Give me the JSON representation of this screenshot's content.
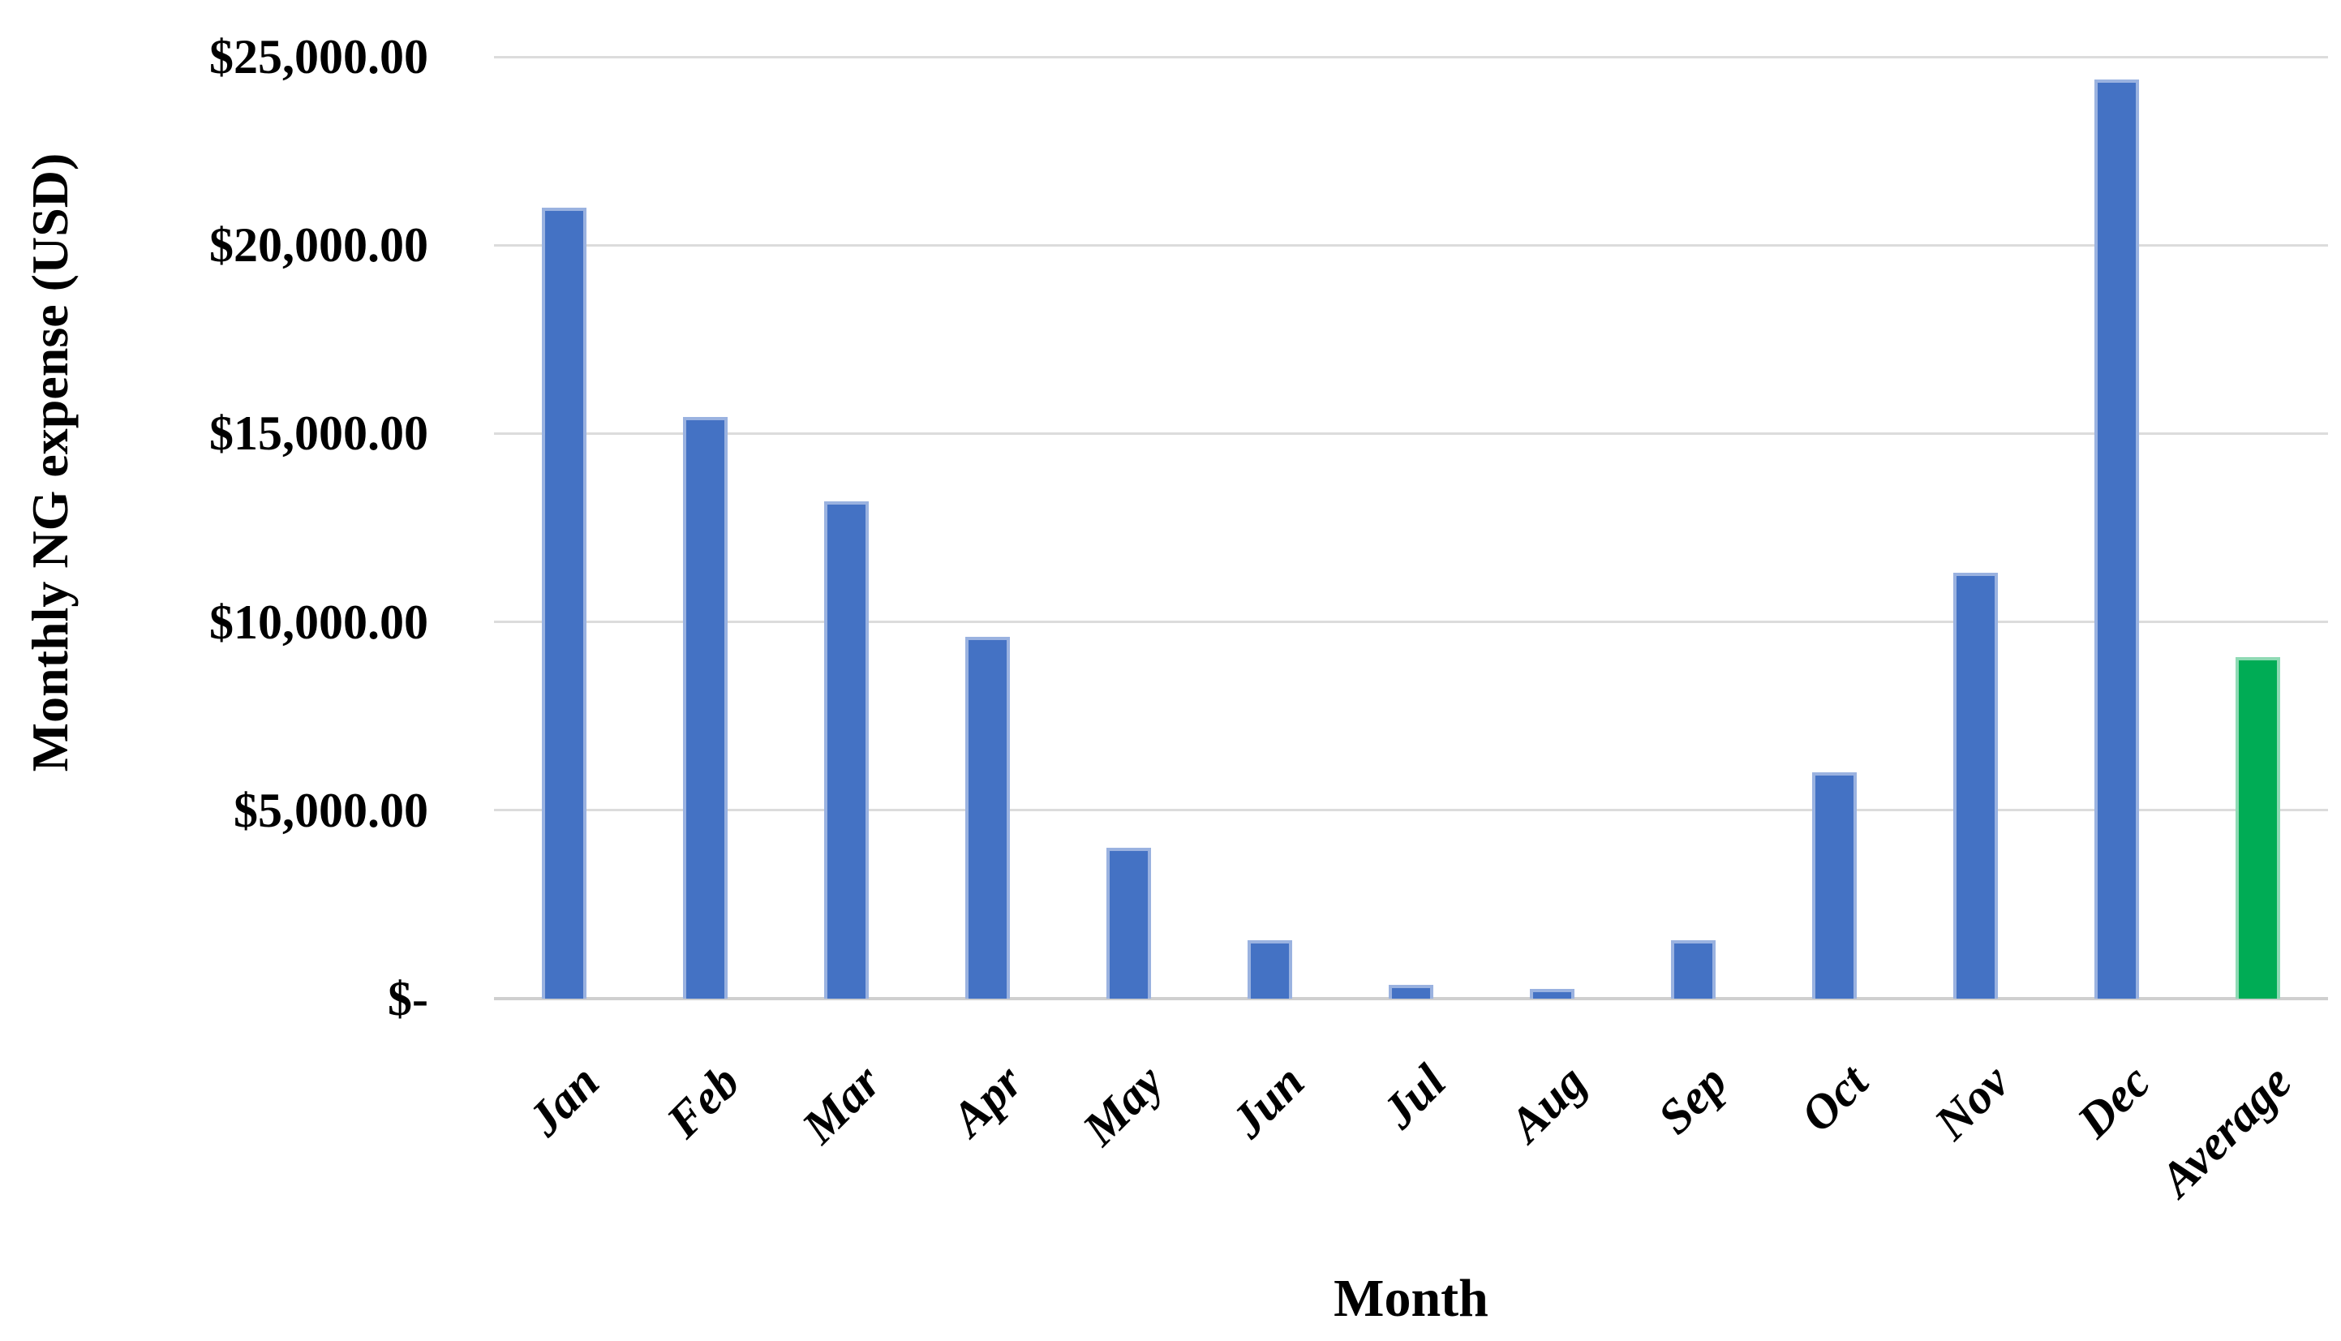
{
  "chart_data": {
    "type": "bar",
    "title": "",
    "xlabel": "Month",
    "ylabel": "Monthly NG expense (USD)",
    "categories": [
      "Jan",
      "Feb",
      "Mar",
      "Apr",
      "May",
      "Jun",
      "Jul",
      "Aug",
      "Sep",
      "Oct",
      "Nov",
      "Dec",
      "Average"
    ],
    "values": [
      21000,
      15450,
      13200,
      9600,
      4000,
      1550,
      370,
      260,
      1550,
      6000,
      11300,
      24400,
      9057
    ],
    "ylim": [
      0,
      25000
    ],
    "yticks": [
      0,
      5000,
      10000,
      15000,
      20000,
      25000
    ],
    "ytick_labels": [
      "$-",
      "$5,000.00",
      "$10,000.00",
      "$15,000.00",
      "$20,000.00",
      "$25,000.00"
    ],
    "grid": true,
    "legend_position": "none",
    "colors": {
      "month_bar": "#4472C4",
      "month_bar_edge": "#9ab2e0",
      "average_bar": "#00AC55",
      "average_bar_edge": "#8fdab4",
      "gridline": "#dcdcdc",
      "text": "#000000"
    },
    "highlight_category": "Average"
  }
}
